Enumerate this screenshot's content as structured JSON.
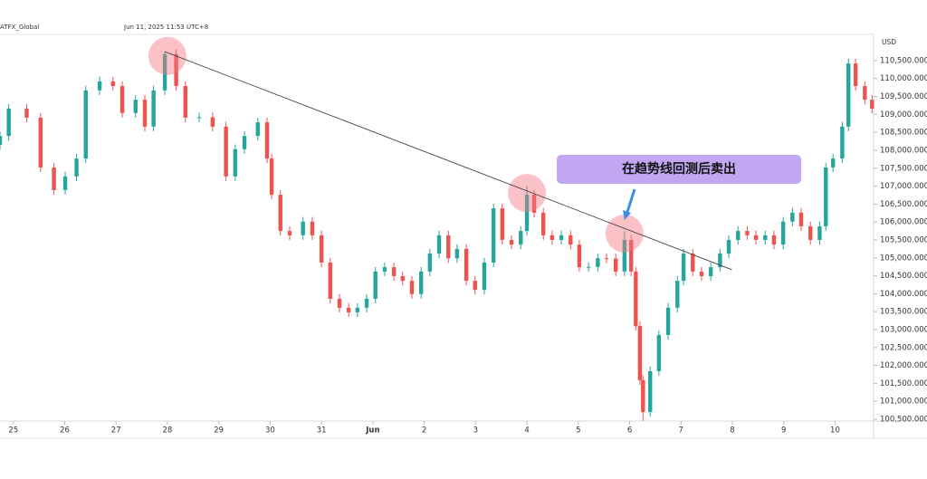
{
  "header": {
    "symbol": "ATFX_Global",
    "timestamp": "Jun 11, 2025 11:53 UTC+8"
  },
  "chart_data": {
    "type": "candlestick",
    "currency": "USD",
    "up_color": "#26a69a",
    "down_color": "#ef5350",
    "x": [
      -0.26,
      -0.09,
      0.26,
      0.53,
      0.79,
      1.01,
      1.23,
      1.41,
      1.68,
      1.94,
      2.12,
      2.38,
      2.56,
      2.73,
      2.95,
      3.17,
      3.35,
      3.62,
      3.88,
      4.14,
      4.32,
      4.5,
      4.76,
      4.94,
      5.03,
      5.2,
      5.38,
      5.64,
      5.82,
      6.0,
      6.17,
      6.35,
      6.53,
      6.7,
      6.88,
      7.05,
      7.23,
      7.41,
      7.58,
      7.76,
      7.94,
      8.11,
      8.29,
      8.47,
      8.64,
      8.82,
      8.99,
      9.17,
      9.35,
      9.52,
      9.7,
      9.88,
      10.0,
      10.14,
      10.32,
      10.49,
      10.67,
      10.85,
      11.02,
      11.2,
      11.38,
      11.55,
      11.73,
      11.9,
      12.03,
      12.12,
      12.2,
      12.26,
      12.4,
      12.57,
      12.75,
      12.93,
      13.05,
      13.23,
      13.4,
      13.58,
      13.76,
      13.93,
      14.11,
      14.29,
      14.46,
      14.64,
      14.81,
      14.99,
      15.17,
      15.34,
      15.52,
      15.7,
      15.82,
      15.96,
      16.14,
      16.26,
      16.4,
      16.58,
      16.72
    ],
    "open": [
      108150,
      108400,
      109160,
      108910,
      107520,
      106890,
      107270,
      107770,
      109670,
      109920,
      109790,
      109040,
      109410,
      108660,
      109670,
      110680,
      109790,
      108910,
      108920,
      108660,
      107270,
      108030,
      108400,
      108780,
      107770,
      106760,
      105750,
      105630,
      106010,
      105630,
      104870,
      103860,
      103610,
      103480,
      103610,
      103860,
      104620,
      104740,
      104490,
      104360,
      103990,
      104620,
      105120,
      105630,
      104990,
      105250,
      104360,
      104110,
      104870,
      106380,
      105500,
      105370,
      105750,
      106760,
      106260,
      105630,
      105500,
      105630,
      105370,
      104740,
      104750,
      104990,
      104980,
      104620,
      105500,
      104620,
      103100,
      101590,
      100700,
      101840,
      102850,
      103610,
      104360,
      105120,
      104620,
      104490,
      104740,
      105120,
      105500,
      105750,
      105630,
      105500,
      105630,
      105370,
      106010,
      106260,
      105880,
      105500,
      105880,
      107520,
      107770,
      108660,
      110420,
      109790,
      109410
    ],
    "close": [
      108400,
      109160,
      108910,
      107520,
      106890,
      107270,
      107770,
      109670,
      109920,
      109790,
      109040,
      109410,
      108660,
      109670,
      110680,
      109790,
      108910,
      108920,
      108660,
      107270,
      108030,
      108400,
      108780,
      107770,
      106760,
      105750,
      105630,
      106010,
      105630,
      104870,
      103860,
      103610,
      103480,
      103610,
      103860,
      104620,
      104740,
      104490,
      104360,
      103990,
      104620,
      105120,
      105630,
      104990,
      105250,
      104360,
      104110,
      104870,
      106380,
      105500,
      105370,
      105750,
      106760,
      106260,
      105630,
      105500,
      105630,
      105370,
      104740,
      104750,
      104990,
      104980,
      104620,
      105500,
      104620,
      103100,
      101590,
      100700,
      101840,
      102850,
      103610,
      104360,
      105120,
      104620,
      104490,
      104740,
      105120,
      105500,
      105750,
      105630,
      105500,
      105630,
      105370,
      106010,
      106260,
      105880,
      105500,
      105880,
      107520,
      107770,
      108660,
      110420,
      109790,
      109410,
      109160
    ],
    "high": [
      108530,
      109290,
      109290,
      109040,
      107650,
      107400,
      107900,
      109800,
      110050,
      110050,
      109920,
      109540,
      109540,
      109800,
      110750,
      110810,
      109920,
      109050,
      109050,
      108790,
      108160,
      108530,
      108910,
      108910,
      107900,
      106890,
      105880,
      106140,
      106140,
      105760,
      105000,
      103990,
      103740,
      103740,
      103990,
      104750,
      104870,
      104870,
      104620,
      104490,
      104750,
      105250,
      105760,
      105760,
      105380,
      105380,
      104490,
      105000,
      106510,
      106510,
      105630,
      105880,
      107020,
      106890,
      106390,
      105760,
      105760,
      105760,
      105500,
      104880,
      105120,
      105120,
      105110,
      105750,
      105630,
      104750,
      103230,
      101720,
      101970,
      102980,
      103740,
      104490,
      105250,
      105250,
      104750,
      104870,
      105250,
      105630,
      105880,
      105880,
      105760,
      105760,
      105760,
      106140,
      106390,
      106390,
      106010,
      106010,
      107650,
      107900,
      108790,
      110550,
      110550,
      109920,
      109540
    ],
    "low": [
      108020,
      108270,
      108780,
      107390,
      106760,
      106760,
      107140,
      107640,
      109540,
      109660,
      108910,
      108910,
      108530,
      108530,
      109540,
      109660,
      108780,
      108780,
      108530,
      107140,
      107140,
      107900,
      108270,
      107640,
      106630,
      105620,
      105500,
      105500,
      105500,
      104740,
      103730,
      103480,
      103350,
      103350,
      103480,
      103730,
      104490,
      104360,
      104230,
      103860,
      103860,
      104490,
      104990,
      104860,
      104860,
      104230,
      103980,
      103980,
      104740,
      105370,
      105240,
      105240,
      105620,
      106130,
      105500,
      105370,
      105370,
      105240,
      104610,
      104610,
      104620,
      104850,
      104490,
      104490,
      104490,
      102970,
      101460,
      100450,
      100570,
      101710,
      102720,
      103480,
      104230,
      104490,
      104360,
      104360,
      104610,
      104990,
      105370,
      105500,
      105370,
      105370,
      105240,
      105240,
      105880,
      105750,
      105370,
      105370,
      105750,
      107390,
      107640,
      108530,
      109660,
      109280,
      109030
    ],
    "xlim": [
      -0.26,
      16.75
    ],
    "ylim": [
      100450,
      111180
    ],
    "xticks": [
      {
        "value": 0,
        "label": "25"
      },
      {
        "value": 1,
        "label": "26"
      },
      {
        "value": 2,
        "label": "27"
      },
      {
        "value": 3,
        "label": "28"
      },
      {
        "value": 4,
        "label": "29"
      },
      {
        "value": 5,
        "label": "30"
      },
      {
        "value": 6,
        "label": "31"
      },
      {
        "value": 7,
        "label": "Jun"
      },
      {
        "value": 8,
        "label": "2"
      },
      {
        "value": 9,
        "label": "3"
      },
      {
        "value": 10,
        "label": "4"
      },
      {
        "value": 11,
        "label": "5"
      },
      {
        "value": 12,
        "label": "6"
      },
      {
        "value": 13,
        "label": "7"
      },
      {
        "value": 14,
        "label": "8"
      },
      {
        "value": 15,
        "label": "9"
      },
      {
        "value": 16,
        "label": "10"
      }
    ],
    "yticks": [
      {
        "value": 100500,
        "label": "100,500.0000"
      },
      {
        "value": 101000,
        "label": "101,000.0000"
      },
      {
        "value": 101500,
        "label": "101,500.0000"
      },
      {
        "value": 102000,
        "label": "102,000.0000"
      },
      {
        "value": 102500,
        "label": "102,500.0000"
      },
      {
        "value": 103000,
        "label": "103,000.0000"
      },
      {
        "value": 103500,
        "label": "103,500.0000"
      },
      {
        "value": 104000,
        "label": "104,000.0000"
      },
      {
        "value": 104500,
        "label": "104,500.0000"
      },
      {
        "value": 105000,
        "label": "105,000.0000"
      },
      {
        "value": 105500,
        "label": "105,500.0000"
      },
      {
        "value": 106000,
        "label": "106,000.0000"
      },
      {
        "value": 106500,
        "label": "106,500.0000"
      },
      {
        "value": 107000,
        "label": "107,000.0000"
      },
      {
        "value": 107500,
        "label": "107,500.0000"
      },
      {
        "value": 108000,
        "label": "108,000.0000"
      },
      {
        "value": 108500,
        "label": "108,500.0000"
      },
      {
        "value": 109000,
        "label": "109,000.0000"
      },
      {
        "value": 109500,
        "label": "109,500.0000"
      },
      {
        "value": 110000,
        "label": "110,000.0000"
      },
      {
        "value": 110500,
        "label": "110,500.0000"
      }
    ],
    "grid": false,
    "trendline": {
      "x": [
        2.95,
        13.99
      ],
      "y": [
        110750,
        104670
      ]
    },
    "highlights": {
      "x": [
        3.0,
        10.0,
        11.9
      ],
      "y": [
        110630,
        106810,
        105680
      ]
    },
    "annotation": "在趋势线回测后卖出"
  }
}
